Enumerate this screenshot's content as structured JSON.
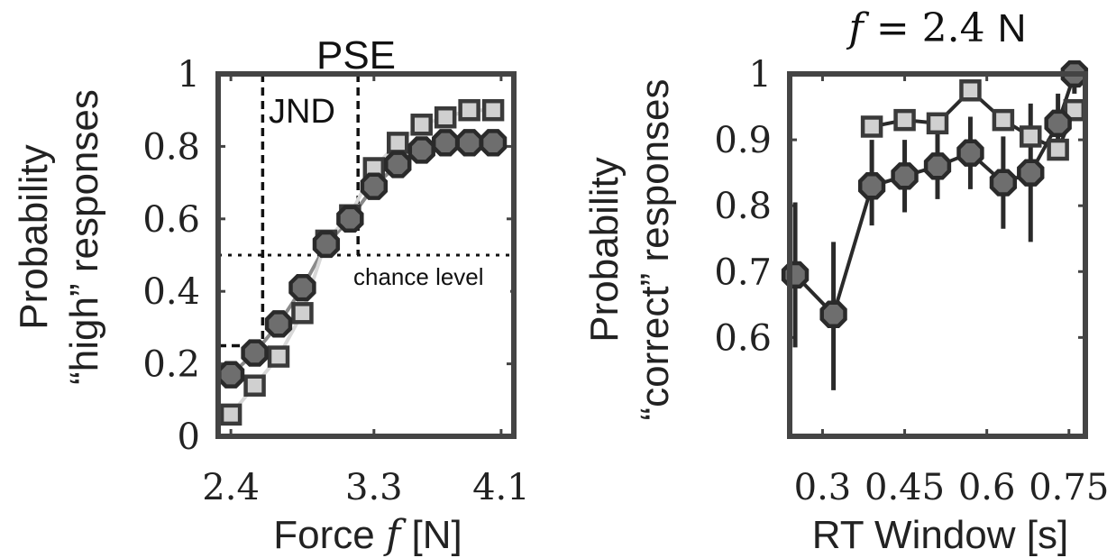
{
  "chart_data": [
    {
      "type": "line",
      "title": "PSE",
      "xlabel": "Force f [N]",
      "ylabel_lines": [
        "Probability",
        "“high” responses"
      ],
      "xlim": [
        2.32,
        4.18
      ],
      "ylim": [
        0,
        1
      ],
      "xticks": [
        2.4,
        3.3,
        4.1
      ],
      "xtick_labels": [
        "2.4",
        "3.3",
        "4.1"
      ],
      "yticks": [
        0,
        0.2,
        0.4,
        0.6,
        0.8,
        1
      ],
      "ytick_labels": [
        "0",
        "0.2",
        "0.4",
        "0.6",
        "0.8",
        "1"
      ],
      "series": [
        {
          "marker": "octagon",
          "color": "#6e6e6e",
          "x": [
            2.4,
            2.55,
            2.7,
            2.85,
            3.0,
            3.15,
            3.3,
            3.45,
            3.6,
            3.75,
            3.9,
            4.05
          ],
          "values": [
            0.17,
            0.23,
            0.31,
            0.41,
            0.53,
            0.6,
            0.69,
            0.75,
            0.79,
            0.81,
            0.81,
            0.81
          ]
        },
        {
          "marker": "square",
          "color": "#d0d0d0",
          "x": [
            2.4,
            2.55,
            2.7,
            2.85,
            3.0,
            3.15,
            3.3,
            3.45,
            3.6,
            3.75,
            3.9,
            4.05
          ],
          "values": [
            0.06,
            0.14,
            0.22,
            0.34,
            0.54,
            0.61,
            0.74,
            0.81,
            0.86,
            0.88,
            0.9,
            0.9
          ]
        }
      ],
      "annotations": {
        "jnd_label": "JND",
        "chance_label": "chance level",
        "chance_level_y": 0.5,
        "jnd_level_y": 0.25,
        "jnd_x": 2.6,
        "pse_x": 3.2
      }
    },
    {
      "type": "line",
      "title": "f = 2.4 N",
      "xlabel": "RT Window [s]",
      "ylabel_lines": [
        "Probability",
        "“correct” responses"
      ],
      "xlim": [
        0.24,
        0.78
      ],
      "ylim": [
        0.45,
        1
      ],
      "xticks": [
        0.3,
        0.45,
        0.6,
        0.75
      ],
      "xtick_labels": [
        "0.3",
        "0.45",
        "0.6",
        "0.75"
      ],
      "yticks": [
        0.6,
        0.7,
        0.8,
        0.9,
        1
      ],
      "ytick_labels": [
        "0.6",
        "0.7",
        "0.8",
        "0.9",
        "1"
      ],
      "series": [
        {
          "marker": "octagon",
          "color": "#6e6e6e",
          "x": [
            0.25,
            0.32,
            0.39,
            0.45,
            0.51,
            0.57,
            0.63,
            0.68,
            0.73,
            0.76
          ],
          "values": [
            0.695,
            0.635,
            0.83,
            0.845,
            0.86,
            0.88,
            0.835,
            0.85,
            0.925,
            1.0
          ],
          "err_low": [
            0.585,
            0.52,
            0.77,
            0.79,
            0.81,
            0.825,
            0.765,
            0.745,
            0.87,
            0.97
          ],
          "err_high": [
            0.805,
            0.745,
            0.9,
            0.9,
            0.91,
            0.935,
            0.905,
            0.955,
            0.97,
            1.0
          ]
        },
        {
          "marker": "square",
          "color": "#d0d0d0",
          "x": [
            0.39,
            0.45,
            0.51,
            0.57,
            0.63,
            0.68,
            0.73,
            0.76
          ],
          "values": [
            0.92,
            0.93,
            0.925,
            0.975,
            0.93,
            0.905,
            0.885,
            0.945
          ]
        }
      ]
    }
  ]
}
